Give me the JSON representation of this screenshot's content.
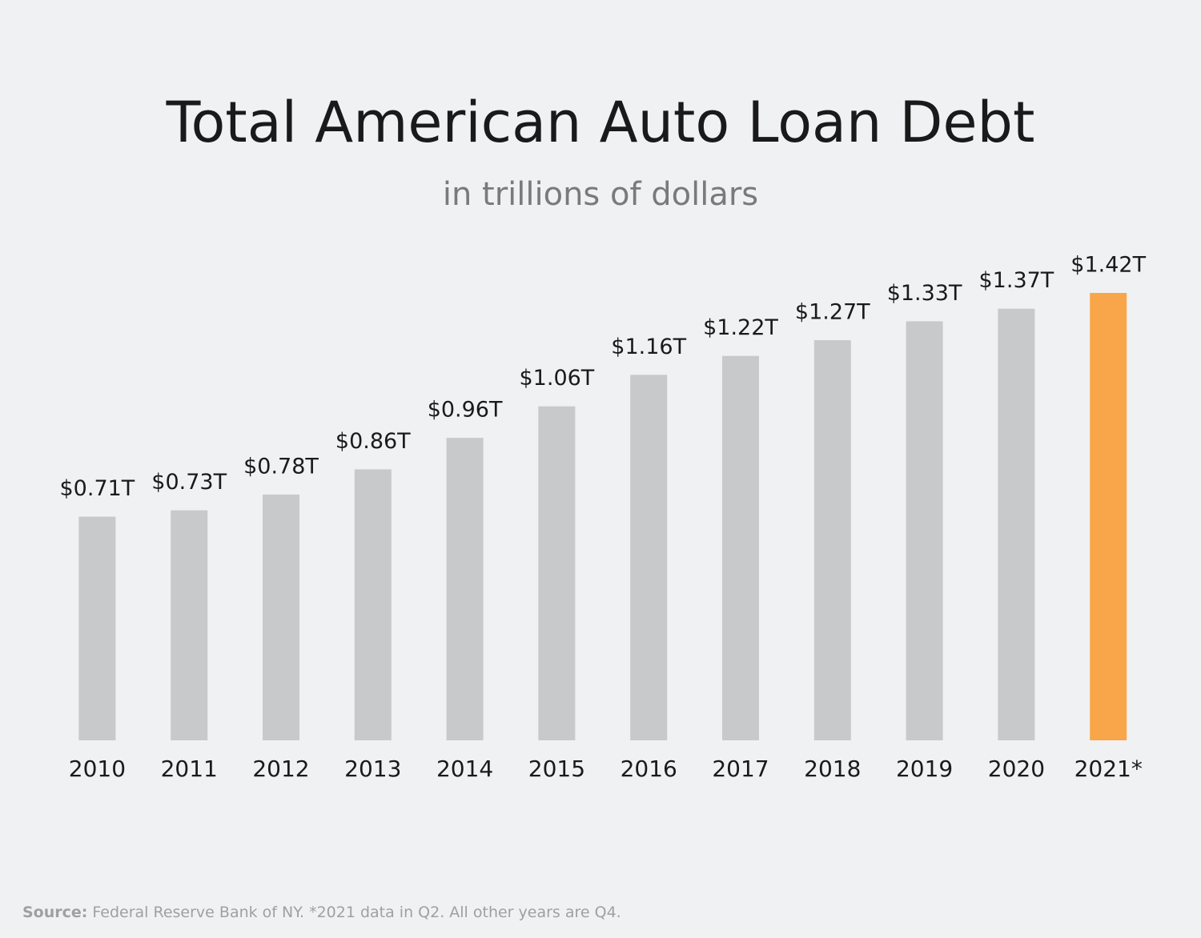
{
  "chart_data": {
    "type": "bar",
    "title": "Total American Auto Loan Debt",
    "subtitle": "in trillions of dollars",
    "categories": [
      "2010",
      "2011",
      "2012",
      "2013",
      "2014",
      "2015",
      "2016",
      "2017",
      "2018",
      "2019",
      "2020",
      "2021*"
    ],
    "values": [
      0.71,
      0.73,
      0.78,
      0.86,
      0.96,
      1.06,
      1.16,
      1.22,
      1.27,
      1.33,
      1.37,
      1.42
    ],
    "value_labels": [
      "$0.71T",
      "$0.73T",
      "$0.78T",
      "$0.86T",
      "$0.96T",
      "$1.06T",
      "$1.16T",
      "$1.22T",
      "$1.27T",
      "$1.33T",
      "$1.37T",
      "$1.42T"
    ],
    "colors": [
      "#c8c9cb",
      "#c8c9cb",
      "#c8c9cb",
      "#c8c9cb",
      "#c8c9cb",
      "#c8c9cb",
      "#c8c9cb",
      "#c8c9cb",
      "#c8c9cb",
      "#c8c9cb",
      "#c8c9cb",
      "#f9a54a"
    ],
    "source": {
      "label": "Source:",
      "text": "Federal Reserve Bank of NY. *2021 data in Q2. All other years are Q4."
    }
  }
}
